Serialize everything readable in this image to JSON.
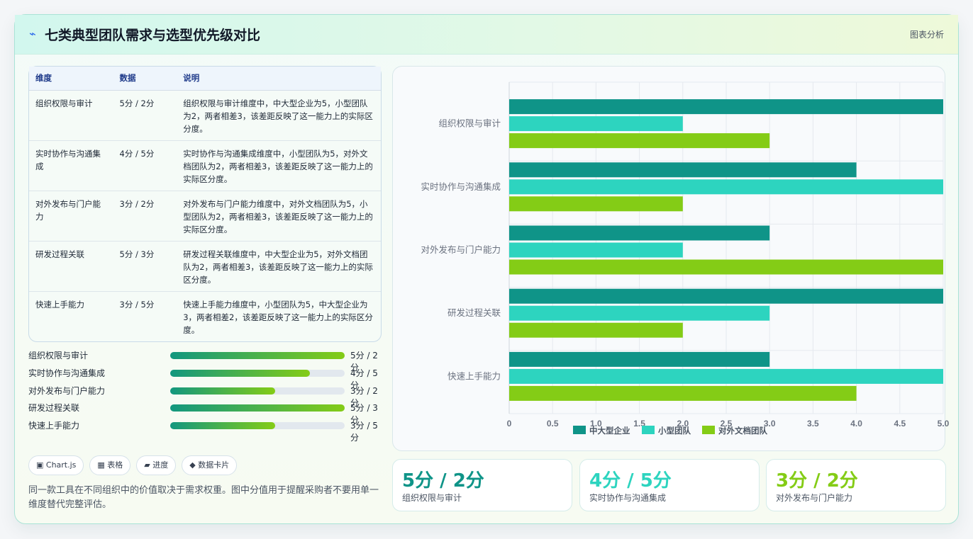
{
  "header": {
    "icon": "lightning-icon",
    "title": "七类典型团队需求与选型优先级对比",
    "tag": "图表分析"
  },
  "table": {
    "headers": [
      "维度",
      "数据",
      "说明"
    ],
    "rows": [
      {
        "dim": "组织权限与审计",
        "data": "5分 / 2分",
        "desc": "组织权限与审计维度中，中大型企业为5，小型团队为2，两者相差3，该差距反映了这一能力上的实际区分度。"
      },
      {
        "dim": "实时协作与沟通集成",
        "data": "4分 / 5分",
        "desc": "实时协作与沟通集成维度中，小型团队为5，对外文档团队为2，两者相差3，该差距反映了这一能力上的实际区分度。"
      },
      {
        "dim": "对外发布与门户能力",
        "data": "3分 / 2分",
        "desc": "对外发布与门户能力维度中，对外文档团队为5，小型团队为2，两者相差3，该差距反映了这一能力上的实际区分度。"
      },
      {
        "dim": "研发过程关联",
        "data": "5分 / 3分",
        "desc": "研发过程关联维度中，中大型企业为5，对外文档团队为2，两者相差3，该差距反映了这一能力上的实际区分度。"
      },
      {
        "dim": "快速上手能力",
        "data": "3分 / 5分",
        "desc": "快速上手能力维度中，小型团队为5，中大型企业为3，两者相差2，该差距反映了这一能力上的实际区分度。"
      }
    ]
  },
  "progress": [
    {
      "label": "组织权限与审计",
      "value": "5分 / 2分",
      "fraction": 1.0
    },
    {
      "label": "实时协作与沟通集成",
      "value": "4分 / 5分",
      "fraction": 0.8
    },
    {
      "label": "对外发布与门户能力",
      "value": "3分 / 2分",
      "fraction": 0.6
    },
    {
      "label": "研发过程关联",
      "value": "5分 / 3分",
      "fraction": 1.0
    },
    {
      "label": "快速上手能力",
      "value": "3分 / 5分",
      "fraction": 0.6
    }
  ],
  "chips": [
    {
      "label": "▣ Chart.js"
    },
    {
      "label": "▦ 表格"
    },
    {
      "label": "▰ 进度"
    },
    {
      "label": "◆ 数据卡片"
    }
  ],
  "note": "同一款工具在不同组织中的价值取决于需求权重。图中分值用于提醒采购者不要用单一维度替代完整评估。",
  "kpis": [
    {
      "value": "5分 / 2分",
      "label": "组织权限与审计",
      "color": "#0f9488"
    },
    {
      "value": "4分 / 5分",
      "label": "实时协作与沟通集成",
      "color": "#2dd4bf"
    },
    {
      "value": "3分 / 2分",
      "label": "对外发布与门户能力",
      "color": "#84cc16"
    }
  ],
  "chart_data": {
    "type": "bar",
    "orientation": "horizontal",
    "categories": [
      "组织权限与审计",
      "实时协作与沟通集成",
      "对外发布与门户能力",
      "研发过程关联",
      "快速上手能力"
    ],
    "series": [
      {
        "name": "中大型企业",
        "values": [
          5,
          4,
          3,
          5,
          3
        ],
        "color": "#0f9488"
      },
      {
        "name": "小型团队",
        "values": [
          2,
          5,
          2,
          3,
          5
        ],
        "color": "#2dd4bf"
      },
      {
        "name": "对外文档团队",
        "values": [
          3,
          2,
          5,
          2,
          4
        ],
        "color": "#84cc16"
      }
    ],
    "xlim": [
      0,
      5
    ],
    "xticks": [
      "0",
      "0.5",
      "1.0",
      "1.5",
      "2.0",
      "2.5",
      "3.0",
      "3.5",
      "4.0",
      "4.5",
      "5.0"
    ],
    "grid": true,
    "legend": "bottom"
  }
}
